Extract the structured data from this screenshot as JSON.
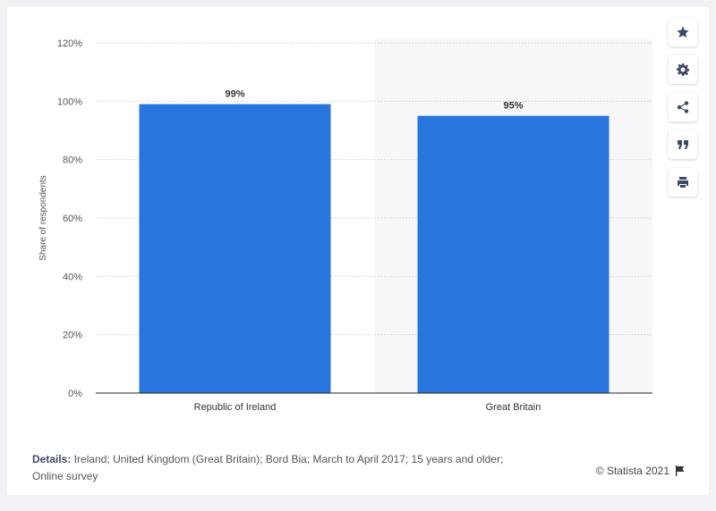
{
  "chart_data": {
    "type": "bar",
    "categories": [
      "Republic of Ireland",
      "Great Britain"
    ],
    "values": [
      99,
      95
    ],
    "data_labels": [
      "99%",
      "95%"
    ],
    "ylabel": "Share of respondents",
    "ylim": [
      0,
      120
    ],
    "yticks": [
      "0%",
      "20%",
      "40%",
      "60%",
      "80%",
      "100%",
      "120%"
    ],
    "grid": true,
    "bar_color": "#2876dd"
  },
  "footer": {
    "details_label": "Details:",
    "details_text": "Ireland; United Kingdom (Great Britain); Bord Bia; March to April 2017; 15 years and older; Online survey",
    "credit": "© Statista 2021"
  },
  "toolbar": {
    "icons": [
      "star-icon",
      "gear-icon",
      "share-icon",
      "quote-icon",
      "print-icon"
    ]
  }
}
